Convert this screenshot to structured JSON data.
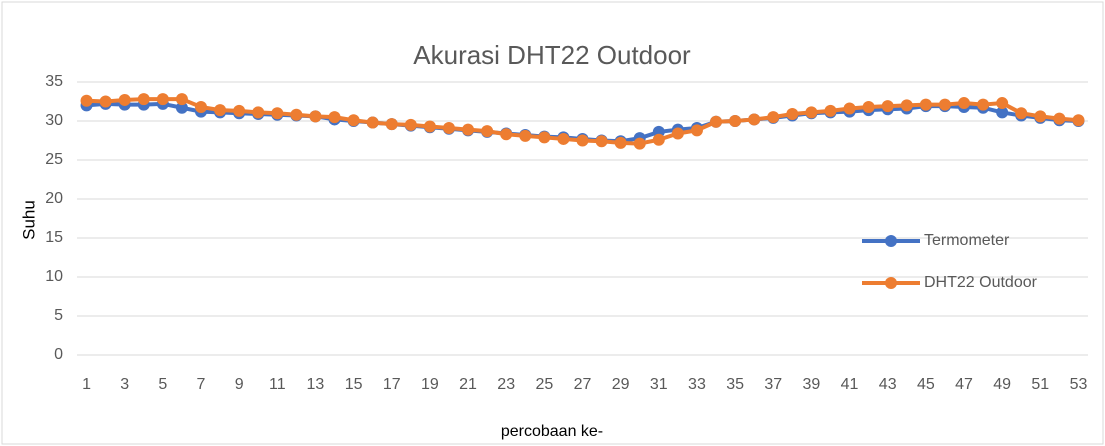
{
  "chart_data": {
    "type": "line",
    "title": "Akurasi DHT22 Outdoor",
    "x_label": "percobaan ke-",
    "y_label": "Suhu",
    "categories": [
      1,
      null,
      3,
      null,
      5,
      null,
      7,
      null,
      9,
      null,
      11,
      null,
      13,
      null,
      15,
      null,
      17,
      null,
      19,
      null,
      21,
      null,
      23,
      null,
      25,
      null,
      27,
      null,
      29,
      null,
      31,
      null,
      33,
      null,
      35,
      null,
      37,
      null,
      39,
      null,
      41,
      null,
      43,
      null,
      45,
      null,
      47,
      null,
      49,
      null,
      51,
      null,
      53
    ],
    "series": [
      {
        "name": "Termometer",
        "color": "#4472c4",
        "values": [
          32,
          32.2,
          32.1,
          32.1,
          32.2,
          31.7,
          31.2,
          31.1,
          31,
          30.9,
          30.8,
          30.7,
          30.6,
          30.2,
          30,
          29.8,
          29.6,
          29.4,
          29.2,
          29,
          28.8,
          28.6,
          28.4,
          28.2,
          28,
          27.9,
          27.7,
          27.5,
          27.4,
          27.8,
          28.6,
          28.9,
          29.1,
          29.9,
          30,
          30.2,
          30.4,
          30.7,
          31,
          31.1,
          31.2,
          31.4,
          31.5,
          31.6,
          31.9,
          31.9,
          31.8,
          31.7,
          31.1,
          30.7,
          30.4,
          30.1,
          30
        ]
      },
      {
        "name": "DHT22 Outdoor",
        "color": "#ed7d31",
        "values": [
          32.6,
          32.5,
          32.7,
          32.8,
          32.8,
          32.8,
          31.8,
          31.4,
          31.3,
          31.1,
          31,
          30.8,
          30.6,
          30.5,
          30.1,
          29.8,
          29.6,
          29.5,
          29.3,
          29.1,
          28.9,
          28.7,
          28.3,
          28.1,
          27.9,
          27.7,
          27.5,
          27.4,
          27.2,
          27.1,
          27.6,
          28.4,
          28.8,
          29.9,
          30,
          30.2,
          30.5,
          30.9,
          31.1,
          31.3,
          31.6,
          31.8,
          31.9,
          32,
          32.1,
          32.1,
          32.3,
          32.1,
          32.3,
          31,
          30.6,
          30.3,
          30.1
        ]
      }
    ],
    "ylim": [
      0,
      35
    ],
    "yticks": [
      0,
      5,
      10,
      15,
      20,
      25,
      30,
      35
    ],
    "grid": true,
    "legend": "right"
  }
}
